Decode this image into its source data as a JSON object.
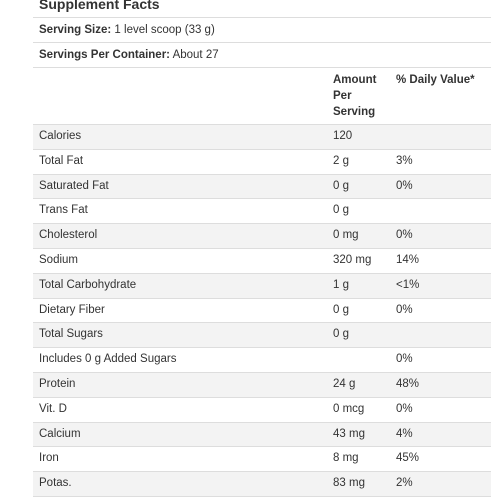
{
  "title": "Supplement Facts",
  "serving_size": {
    "label": "Serving Size:",
    "value": "1 level scoop (33 g)"
  },
  "servings_per_container": {
    "label": "Servings Per Container:",
    "value": "About 27"
  },
  "header": {
    "amount": "Amount Per Serving",
    "daily_value": "% Daily Value*"
  },
  "rows": [
    {
      "name": "Calories",
      "amount": "120",
      "dv": ""
    },
    {
      "name": "Total Fat",
      "amount": "2 g",
      "dv": "3%"
    },
    {
      "name": "Saturated Fat",
      "amount": "0 g",
      "dv": "0%"
    },
    {
      "name": "Trans Fat",
      "amount": "0 g",
      "dv": ""
    },
    {
      "name": "Cholesterol",
      "amount": "0 mg",
      "dv": "0%"
    },
    {
      "name": "Sodium",
      "amount": "320 mg",
      "dv": "14%"
    },
    {
      "name": "Total Carbohydrate",
      "amount": "1 g",
      "dv": "<1%"
    },
    {
      "name": "Dietary Fiber",
      "amount": "0 g",
      "dv": "0%"
    },
    {
      "name": "Total Sugars",
      "amount": "0 g",
      "dv": ""
    },
    {
      "name": "Includes 0 g Added Sugars",
      "amount": "",
      "dv": "0%"
    },
    {
      "name": "Protein",
      "amount": "24 g",
      "dv": "48%"
    },
    {
      "name": "Vit. D",
      "amount": "0 mcg",
      "dv": "0%"
    },
    {
      "name": "Calcium",
      "amount": "43 mg",
      "dv": "4%"
    },
    {
      "name": "Iron",
      "amount": "8 mg",
      "dv": "45%"
    },
    {
      "name": "Potas.",
      "amount": "83 mg",
      "dv": "2%"
    }
  ]
}
